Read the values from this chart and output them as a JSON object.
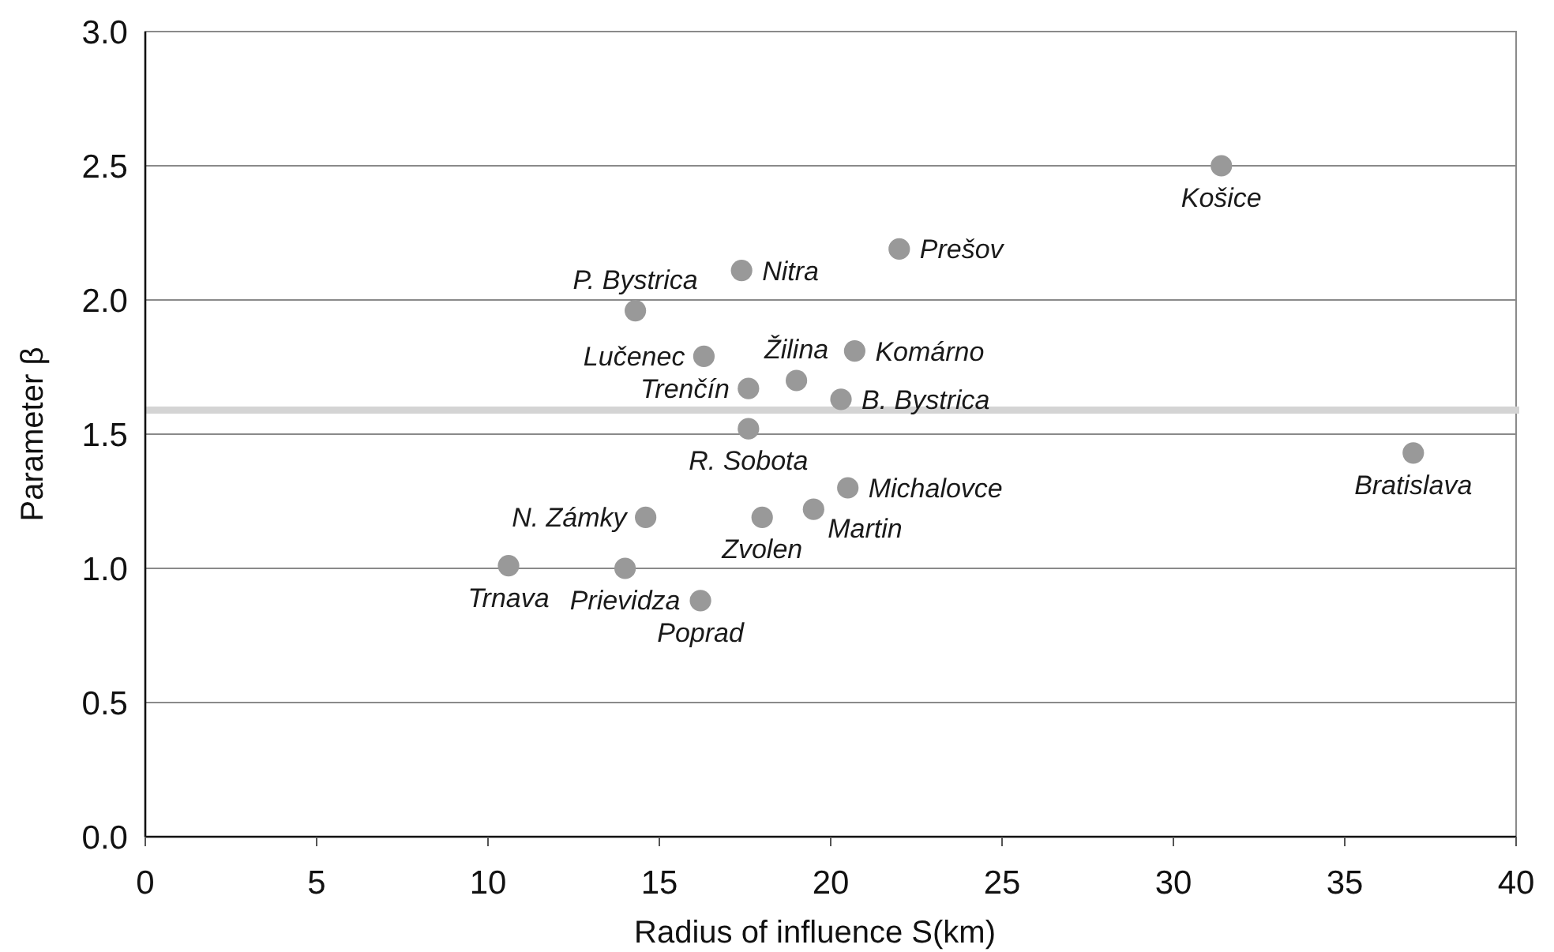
{
  "chart_data": {
    "type": "scatter",
    "xlabel": "Radius of influence S(km)",
    "ylabel": "Parameter β",
    "x": [
      10.6,
      14.0,
      14.3,
      14.6,
      16.2,
      16.3,
      17.4,
      17.6,
      17.6,
      18.0,
      19.0,
      19.5,
      20.3,
      20.5,
      20.7,
      22.0,
      31.4,
      37.0
    ],
    "values": [
      1.01,
      1.0,
      1.96,
      1.19,
      0.88,
      1.79,
      2.11,
      1.52,
      1.67,
      1.19,
      1.7,
      1.22,
      1.63,
      1.3,
      1.81,
      2.19,
      2.5,
      1.43
    ],
    "color": "#999999",
    "marker": "circle",
    "xlim": [
      0,
      40
    ],
    "xticks": [
      0,
      5,
      10,
      15,
      20,
      25,
      30,
      35,
      40
    ],
    "ylim": [
      0,
      3
    ],
    "yticks": [
      {
        "value": 0,
        "label": "0.0"
      },
      0.5,
      {
        "value": 1,
        "label": "1.0"
      },
      1.5,
      {
        "value": 2,
        "label": "2.0"
      },
      2.5,
      {
        "value": 3,
        "label": "3.0"
      }
    ],
    "grid": "y",
    "ref_lines": [
      {
        "axis": "y",
        "value": 1.59,
        "color": "#d4d4d4"
      }
    ],
    "annotations": [
      {
        "text": "Trnava",
        "x": 10.6,
        "y": 1.01
      },
      {
        "text": "Prievidza",
        "x": 14.0,
        "y": 1.0
      },
      {
        "text": "P. Bystrica",
        "x": 14.3,
        "y": 1.96
      },
      {
        "text": "N. Zámky",
        "x": 14.6,
        "y": 1.19
      },
      {
        "text": "Poprad",
        "x": 16.2,
        "y": 0.88
      },
      {
        "text": "Lučenec",
        "x": 16.3,
        "y": 1.79
      },
      {
        "text": "Nitra",
        "x": 17.4,
        "y": 2.11
      },
      {
        "text": "R. Sobota",
        "x": 17.6,
        "y": 1.52
      },
      {
        "text": "Trenčín",
        "x": 17.6,
        "y": 1.67
      },
      {
        "text": "Zvolen",
        "x": 18.0,
        "y": 1.19
      },
      {
        "text": "Žilina",
        "x": 19.0,
        "y": 1.7
      },
      {
        "text": "Martin",
        "x": 19.5,
        "y": 1.22
      },
      {
        "text": "B. Bystrica",
        "x": 20.3,
        "y": 1.63
      },
      {
        "text": "Michalovce",
        "x": 20.5,
        "y": 1.3
      },
      {
        "text": "Komárno",
        "x": 20.7,
        "y": 1.81
      },
      {
        "text": "Prešov",
        "x": 22.0,
        "y": 2.19
      },
      {
        "text": "Košice",
        "x": 31.4,
        "y": 2.5
      },
      {
        "text": "Bratislava",
        "x": 37.0,
        "y": 1.43
      }
    ]
  }
}
